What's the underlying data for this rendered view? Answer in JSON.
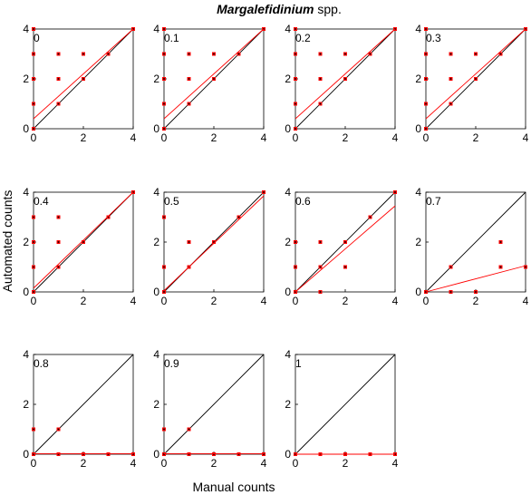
{
  "figure": {
    "title_italic": "Margalefidinium",
    "title_rest": " spp.",
    "xlabel": "Manual counts",
    "ylabel": "Automated counts"
  },
  "colors": {
    "points": "#ff0000",
    "fit": "#ff0000",
    "identity": "#000000",
    "axes": "#000000"
  },
  "chart_data": [
    {
      "type": "scatter",
      "label": "0",
      "xlim": [
        0,
        4
      ],
      "ylim": [
        0,
        4
      ],
      "xticks": [
        0,
        2,
        4
      ],
      "yticks": [
        0,
        2,
        4
      ],
      "points": [
        [
          0,
          0
        ],
        [
          0,
          1
        ],
        [
          0,
          2
        ],
        [
          0,
          3
        ],
        [
          0,
          4
        ],
        [
          1,
          1
        ],
        [
          1,
          2
        ],
        [
          1,
          3
        ],
        [
          2,
          2
        ],
        [
          2,
          3
        ],
        [
          3,
          3
        ],
        [
          4,
          4
        ]
      ],
      "fit": [
        [
          0,
          0.4
        ],
        [
          4,
          4
        ]
      ],
      "identity": [
        [
          0,
          0
        ],
        [
          4,
          4
        ]
      ]
    },
    {
      "type": "scatter",
      "label": "0.1",
      "xlim": [
        0,
        4
      ],
      "ylim": [
        0,
        4
      ],
      "xticks": [
        0,
        2,
        4
      ],
      "yticks": [
        0,
        2,
        4
      ],
      "points": [
        [
          0,
          0
        ],
        [
          0,
          1
        ],
        [
          0,
          2
        ],
        [
          0,
          3
        ],
        [
          0,
          4
        ],
        [
          1,
          1
        ],
        [
          1,
          2
        ],
        [
          1,
          3
        ],
        [
          2,
          2
        ],
        [
          2,
          3
        ],
        [
          3,
          3
        ],
        [
          4,
          4
        ]
      ],
      "fit": [
        [
          0,
          0.4
        ],
        [
          4,
          4
        ]
      ],
      "identity": [
        [
          0,
          0
        ],
        [
          4,
          4
        ]
      ]
    },
    {
      "type": "scatter",
      "label": "0.2",
      "xlim": [
        0,
        4
      ],
      "ylim": [
        0,
        4
      ],
      "xticks": [
        0,
        2,
        4
      ],
      "yticks": [
        0,
        2,
        4
      ],
      "points": [
        [
          0,
          0
        ],
        [
          0,
          1
        ],
        [
          0,
          2
        ],
        [
          0,
          3
        ],
        [
          0,
          4
        ],
        [
          1,
          1
        ],
        [
          1,
          2
        ],
        [
          1,
          3
        ],
        [
          2,
          2
        ],
        [
          2,
          3
        ],
        [
          3,
          3
        ],
        [
          4,
          4
        ]
      ],
      "fit": [
        [
          0,
          0.4
        ],
        [
          4,
          4
        ]
      ],
      "identity": [
        [
          0,
          0
        ],
        [
          4,
          4
        ]
      ]
    },
    {
      "type": "scatter",
      "label": "0.3",
      "xlim": [
        0,
        4
      ],
      "ylim": [
        0,
        4
      ],
      "xticks": [
        0,
        2,
        4
      ],
      "yticks": [
        0,
        2,
        4
      ],
      "points": [
        [
          0,
          0
        ],
        [
          0,
          1
        ],
        [
          0,
          2
        ],
        [
          0,
          3
        ],
        [
          0,
          4
        ],
        [
          1,
          1
        ],
        [
          1,
          2
        ],
        [
          1,
          3
        ],
        [
          2,
          2
        ],
        [
          2,
          3
        ],
        [
          3,
          3
        ],
        [
          4,
          4
        ]
      ],
      "fit": [
        [
          0,
          0.4
        ],
        [
          4,
          4
        ]
      ],
      "identity": [
        [
          0,
          0
        ],
        [
          4,
          4
        ]
      ]
    },
    {
      "type": "scatter",
      "label": "0.4",
      "xlim": [
        0,
        4
      ],
      "ylim": [
        0,
        4
      ],
      "xticks": [
        0,
        2,
        4
      ],
      "yticks": [
        0,
        2,
        4
      ],
      "points": [
        [
          0,
          0
        ],
        [
          0,
          1
        ],
        [
          0,
          2
        ],
        [
          0,
          3
        ],
        [
          1,
          1
        ],
        [
          1,
          2
        ],
        [
          1,
          3
        ],
        [
          2,
          2
        ],
        [
          3,
          3
        ],
        [
          4,
          4
        ]
      ],
      "fit": [
        [
          0,
          0.15
        ],
        [
          4,
          4
        ]
      ],
      "identity": [
        [
          0,
          0
        ],
        [
          4,
          4
        ]
      ]
    },
    {
      "type": "scatter",
      "label": "0.5",
      "xlim": [
        0,
        4
      ],
      "ylim": [
        0,
        4
      ],
      "xticks": [
        0,
        2,
        4
      ],
      "yticks": [
        0,
        2,
        4
      ],
      "points": [
        [
          0,
          0
        ],
        [
          0,
          1
        ],
        [
          0,
          3
        ],
        [
          1,
          1
        ],
        [
          1,
          2
        ],
        [
          2,
          2
        ],
        [
          3,
          3
        ],
        [
          4,
          4
        ]
      ],
      "fit": [
        [
          0,
          0.05
        ],
        [
          4,
          3.85
        ]
      ],
      "identity": [
        [
          0,
          0
        ],
        [
          4,
          4
        ]
      ]
    },
    {
      "type": "scatter",
      "label": "0.6",
      "xlim": [
        0,
        4
      ],
      "ylim": [
        0,
        4
      ],
      "xticks": [
        0,
        2,
        4
      ],
      "yticks": [
        0,
        2,
        4
      ],
      "points": [
        [
          0,
          0
        ],
        [
          0,
          1
        ],
        [
          0,
          2
        ],
        [
          1,
          0
        ],
        [
          1,
          1
        ],
        [
          1,
          2
        ],
        [
          2,
          1
        ],
        [
          2,
          2
        ],
        [
          3,
          3
        ],
        [
          4,
          4
        ]
      ],
      "fit": [
        [
          0,
          0
        ],
        [
          4,
          3.45
        ]
      ],
      "identity": [
        [
          0,
          0
        ],
        [
          4,
          4
        ]
      ]
    },
    {
      "type": "scatter",
      "label": "0.7",
      "xlim": [
        0,
        4
      ],
      "ylim": [
        0,
        4
      ],
      "xticks": [
        0,
        2,
        4
      ],
      "yticks": [
        0,
        2,
        4
      ],
      "points": [
        [
          0,
          0
        ],
        [
          1,
          0
        ],
        [
          1,
          1
        ],
        [
          2,
          0
        ],
        [
          3,
          1
        ],
        [
          3,
          2
        ],
        [
          4,
          1
        ]
      ],
      "fit": [
        [
          0,
          0
        ],
        [
          4,
          1.05
        ]
      ],
      "identity": [
        [
          0,
          0
        ],
        [
          4,
          4
        ]
      ]
    },
    {
      "type": "scatter",
      "label": "0.8",
      "xlim": [
        0,
        4
      ],
      "ylim": [
        0,
        4
      ],
      "xticks": [
        0,
        2,
        4
      ],
      "yticks": [
        0,
        2,
        4
      ],
      "points": [
        [
          0,
          0
        ],
        [
          0,
          1
        ],
        [
          1,
          0
        ],
        [
          1,
          1
        ],
        [
          2,
          0
        ],
        [
          3,
          0
        ],
        [
          4,
          0
        ]
      ],
      "fit": [
        [
          0,
          0.02
        ],
        [
          4,
          0.02
        ]
      ],
      "identity": [
        [
          0,
          0
        ],
        [
          4,
          4
        ]
      ]
    },
    {
      "type": "scatter",
      "label": "0.9",
      "xlim": [
        0,
        4
      ],
      "ylim": [
        0,
        4
      ],
      "xticks": [
        0,
        2,
        4
      ],
      "yticks": [
        0,
        2,
        4
      ],
      "points": [
        [
          0,
          0
        ],
        [
          0,
          1
        ],
        [
          1,
          0
        ],
        [
          1,
          1
        ],
        [
          2,
          0
        ],
        [
          3,
          0
        ],
        [
          4,
          0
        ]
      ],
      "fit": [
        [
          0,
          0.02
        ],
        [
          4,
          0.02
        ]
      ],
      "identity": [
        [
          0,
          0
        ],
        [
          4,
          4
        ]
      ]
    },
    {
      "type": "scatter",
      "label": "1",
      "xlim": [
        0,
        4
      ],
      "ylim": [
        0,
        4
      ],
      "xticks": [
        0,
        2,
        4
      ],
      "yticks": [
        0,
        2,
        4
      ],
      "points": [
        [
          0,
          0
        ],
        [
          1,
          0
        ],
        [
          2,
          0
        ],
        [
          3,
          0
        ],
        [
          4,
          0
        ]
      ],
      "fit": [
        [
          0,
          0
        ],
        [
          4,
          0
        ]
      ],
      "identity": [
        [
          0,
          0
        ],
        [
          4,
          4
        ]
      ]
    }
  ]
}
